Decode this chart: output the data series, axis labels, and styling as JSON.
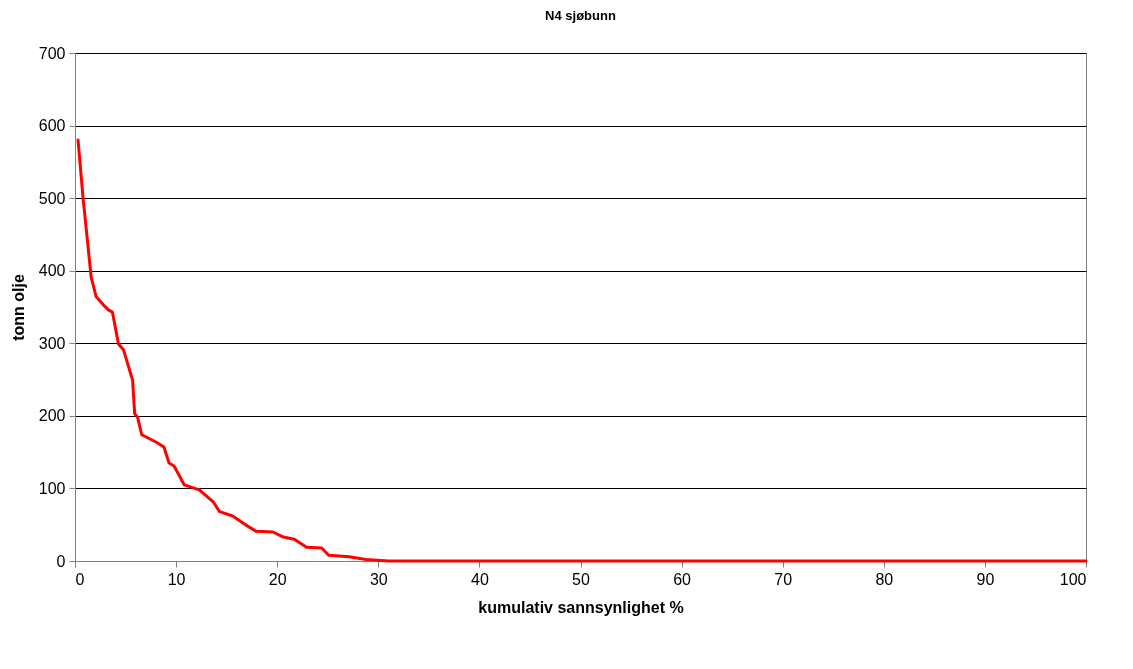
{
  "chart_data": {
    "type": "line",
    "title": "N4 sjøbunn",
    "xlabel": "kumulativ sannsynlighet %",
    "ylabel": "tonn olje",
    "x": [
      0.3,
      0.8,
      1.6,
      2.1,
      2.8,
      3.3,
      3.7,
      4.3,
      4.8,
      5.7,
      5.9,
      6.2,
      6.6,
      8,
      8.8,
      9.3,
      9.8,
      10.8,
      12.3,
      13.7,
      14.3,
      15.6,
      17.2,
      17.9,
      19.6,
      20.6,
      21.7,
      22.9,
      24.4,
      25.1,
      27.1,
      28.8,
      31,
      100
    ],
    "series": [
      {
        "color": "#ff0000",
        "values": [
          580,
          500,
          391,
          364,
          353,
          346,
          343,
          299,
          291,
          249,
          203,
          198,
          174,
          164,
          157,
          135,
          131,
          105,
          98,
          81,
          68,
          62,
          47,
          41,
          40,
          33,
          30,
          19,
          18,
          8,
          6,
          2,
          0,
          0
        ]
      }
    ],
    "xlim": [
      0,
      100
    ],
    "xticks": [
      0,
      10,
      20,
      30,
      40,
      50,
      60,
      70,
      80,
      90,
      100
    ],
    "ylim": [
      0,
      700
    ],
    "yticks": [
      0,
      100,
      200,
      300,
      400,
      500,
      600,
      700
    ],
    "grid": "y",
    "marker": "none",
    "line_style": "solid"
  }
}
